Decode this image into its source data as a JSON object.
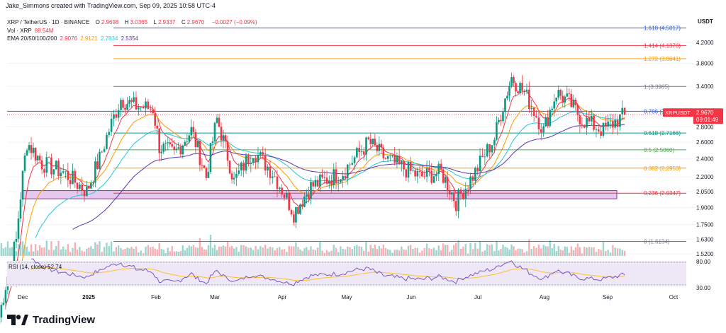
{
  "header": {
    "created_by": "Jake_Simmons created with TradingView.com, Sep 09, 2025 10:58 UTC-4"
  },
  "legend": {
    "symbol_line": "XRP / TetherUS · 1D · BINANCE",
    "ohlc": [
      {
        "label": "O",
        "value": "2.9698"
      },
      {
        "label": "H",
        "value": "3.0365"
      },
      {
        "label": "L",
        "value": "2.9337"
      },
      {
        "label": "C",
        "value": "2.9670"
      },
      {
        "label": "",
        "value": "−0.0027 (−0.09%)"
      }
    ],
    "volume_line": "Vol · XRP",
    "volume_value": "88.54M",
    "ema_line": "EMA 20/50/100/200",
    "ema_values": [
      {
        "value": "2.9076",
        "color": "#f23645"
      },
      {
        "value": "2.9121",
        "color": "#ff9800"
      },
      {
        "value": "2.7834",
        "color": "#26c6da"
      },
      {
        "value": "2.5354",
        "color": "#5e35b1"
      }
    ]
  },
  "price_axis": {
    "currency": "USDT",
    "ticks": [
      "4.2000",
      "3.8000",
      "3.4000",
      "2.8000",
      "2.6000",
      "2.4000",
      "2.2000",
      "2.0500",
      "1.9000",
      "1.7500",
      "1.6300",
      "1.5200"
    ],
    "rsi_ticks": [
      "80.00",
      "30.00"
    ],
    "last_price_label": "XRPUSDT",
    "last_price": "2.9670",
    "countdown": "09:01:49"
  },
  "time_axis": {
    "ticks": [
      "Dec",
      "2025",
      "Feb",
      "Mar",
      "Apr",
      "May",
      "Jun",
      "Jul",
      "Aug",
      "Sep",
      "Oct"
    ]
  },
  "rsi": {
    "label": "RSI (14, close)",
    "value": "52.74"
  },
  "fib_levels": [
    {
      "ratio": "1.618",
      "price": "4.5017",
      "label": "1.618 (4.5017)",
      "color": "#2962ff"
    },
    {
      "ratio": "1.414",
      "price": "4.1376",
      "label": "1.414 (4.1376)",
      "color": "#f23645"
    },
    {
      "ratio": "1.272",
      "price": "3.8841",
      "label": "1.272 (3.8841)",
      "color": "#ff9800"
    },
    {
      "ratio": "1",
      "price": "3.3985",
      "label": "1 (3.3985)",
      "color": "#787b86"
    },
    {
      "ratio": "0.786",
      "price": "3.0165",
      "label": "0.786 (3.0165)",
      "color": "#2962ff"
    },
    {
      "ratio": "0.618",
      "price": "2.7166",
      "label": "0.618 (2.7166)",
      "color": "#089981"
    },
    {
      "ratio": "0.5",
      "price": "2.5060",
      "label": "0.5 (2.5060)",
      "color": "#4caf50"
    },
    {
      "ratio": "0.382",
      "price": "2.2953",
      "label": "0.382 (2.2953)",
      "color": "#ff9800"
    },
    {
      "ratio": "0.236",
      "price": "2.0347",
      "label": "0.236 (2.0347)",
      "color": "#f23645"
    },
    {
      "ratio": "0",
      "price": "1.6134",
      "label": "0 (1.6134)",
      "color": "#787b86"
    }
  ],
  "colors": {
    "up": "#089981",
    "down": "#f23645",
    "zone_fill": "#e1bee7",
    "zone_border": "#9c27b0",
    "rsi_line": "#7e57c2",
    "rsi_band": "#ede7f6",
    "rsi_ma": "#fbc02d",
    "grid": "#f0f3fa"
  },
  "chart_data": {
    "type": "candlestick",
    "symbol": "XRP / TetherUS",
    "interval": "1D",
    "exchange": "BINANCE",
    "last": {
      "open": 2.9698,
      "high": 3.0365,
      "low": 2.9337,
      "close": 2.967,
      "change": -0.0027,
      "change_pct": -0.09
    },
    "support_zone": [
      1.98,
      2.06
    ],
    "x_ticks": [
      "Dec",
      "2025",
      "Feb",
      "Mar",
      "Apr",
      "May",
      "Jun",
      "Jul",
      "Aug",
      "Sep",
      "Oct"
    ],
    "close_path": [
      {
        "date": "Nov 20",
        "close": 1.12
      },
      {
        "date": "Nov 28",
        "close": 1.62
      },
      {
        "date": "Dec 03",
        "close": 2.6
      },
      {
        "date": "Dec 10",
        "close": 2.35
      },
      {
        "date": "Dec 20",
        "close": 2.25
      },
      {
        "date": "Dec 31",
        "close": 2.05
      },
      {
        "date": "Jan 06",
        "close": 2.4
      },
      {
        "date": "Jan 16",
        "close": 3.2
      },
      {
        "date": "Jan 22",
        "close": 3.1
      },
      {
        "date": "Jan 31",
        "close": 3.05
      },
      {
        "date": "Feb 03",
        "close": 2.55
      },
      {
        "date": "Feb 10",
        "close": 2.45
      },
      {
        "date": "Feb 18",
        "close": 2.75
      },
      {
        "date": "Feb 25",
        "close": 2.2
      },
      {
        "date": "Mar 02",
        "close": 2.9
      },
      {
        "date": "Mar 10",
        "close": 2.15
      },
      {
        "date": "Mar 19",
        "close": 2.5
      },
      {
        "date": "Mar 28",
        "close": 2.25
      },
      {
        "date": "Apr 07",
        "close": 1.85
      },
      {
        "date": "Apr 15",
        "close": 2.1
      },
      {
        "date": "Apr 30",
        "close": 2.25
      },
      {
        "date": "May 12",
        "close": 2.6
      },
      {
        "date": "May 20",
        "close": 2.4
      },
      {
        "date": "Jun 05",
        "close": 2.2
      },
      {
        "date": "Jun 15",
        "close": 2.25
      },
      {
        "date": "Jun 22",
        "close": 1.95
      },
      {
        "date": "Jul 01",
        "close": 2.25
      },
      {
        "date": "Jul 10",
        "close": 2.65
      },
      {
        "date": "Jul 18",
        "close": 3.55
      },
      {
        "date": "Jul 24",
        "close": 3.3
      },
      {
        "date": "Aug 02",
        "close": 2.75
      },
      {
        "date": "Aug 08",
        "close": 3.3
      },
      {
        "date": "Aug 14",
        "close": 3.15
      },
      {
        "date": "Aug 20",
        "close": 2.9
      },
      {
        "date": "Aug 30",
        "close": 2.75
      },
      {
        "date": "Sep 09",
        "close": 2.967
      }
    ],
    "ema": [
      {
        "name": "EMA 20",
        "last": 2.9076
      },
      {
        "name": "EMA 50",
        "last": 2.9121
      },
      {
        "name": "EMA 100",
        "last": 2.7834
      },
      {
        "name": "EMA 200",
        "last": 2.5354
      }
    ],
    "rsi": {
      "period": 14,
      "source": "close",
      "last": 52.74,
      "upper": 80,
      "lower": 30
    }
  }
}
